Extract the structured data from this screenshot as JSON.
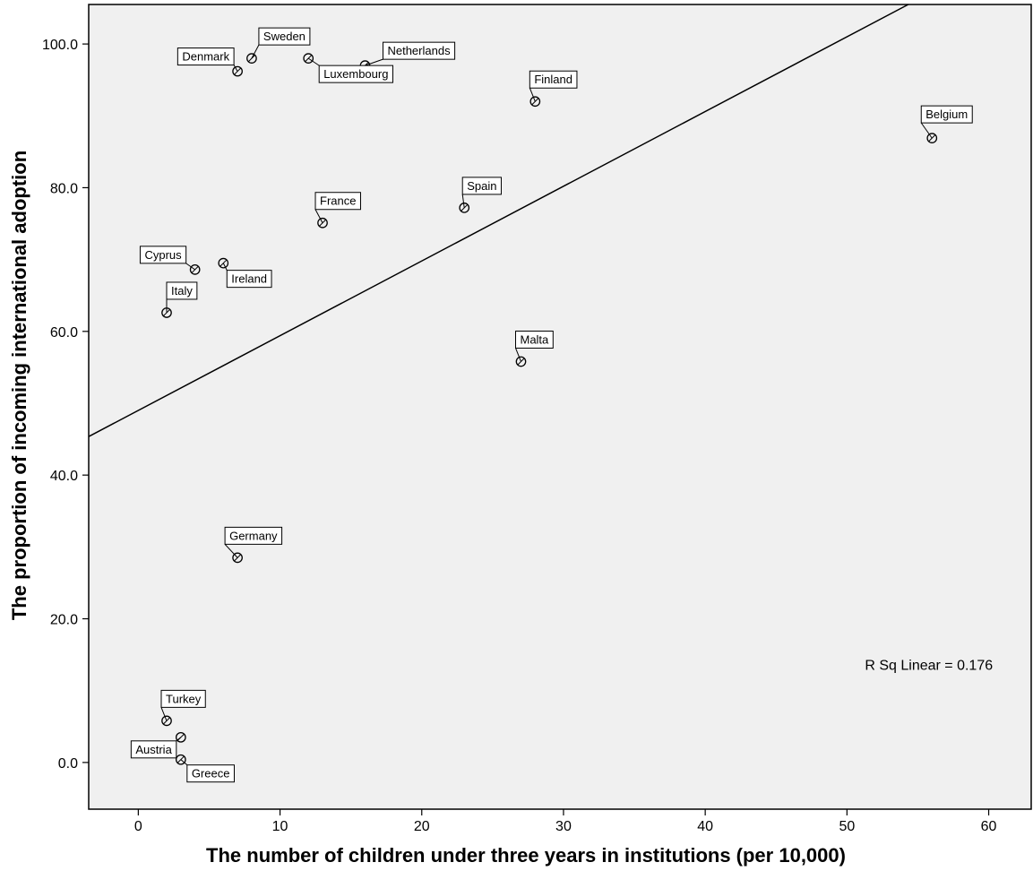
{
  "chart_data": {
    "type": "scatter",
    "xlabel": "The number of children under three years in institutions (per 10,000)",
    "ylabel": "The proportion of incoming international adoption",
    "xlim": [
      -3.5,
      63
    ],
    "ylim": [
      -6.5,
      105.5
    ],
    "x_ticks": [
      0,
      10,
      20,
      30,
      40,
      50,
      60
    ],
    "y_ticks": [
      0.0,
      20.0,
      40.0,
      60.0,
      80.0,
      100.0
    ],
    "x_tick_labels": [
      "0",
      "10",
      "20",
      "30",
      "40",
      "50",
      "60"
    ],
    "y_tick_labels": [
      "0.0",
      "20.0",
      "40.0",
      "60.0",
      "80.0",
      "100.0"
    ],
    "grid": false,
    "plot_background": "#f0f0f0",
    "points": [
      {
        "label": "Sweden",
        "x": 8,
        "y": 98.0
      },
      {
        "label": "Denmark",
        "x": 7,
        "y": 96.2
      },
      {
        "label": "Luxembourg",
        "x": 12,
        "y": 98.0
      },
      {
        "label": "Netherlands",
        "x": 16,
        "y": 97.0
      },
      {
        "label": "Finland",
        "x": 28,
        "y": 92.0
      },
      {
        "label": "Belgium",
        "x": 56,
        "y": 86.9
      },
      {
        "label": "Spain",
        "x": 23,
        "y": 77.2
      },
      {
        "label": "France",
        "x": 13,
        "y": 75.1
      },
      {
        "label": "Cyprus",
        "x": 4,
        "y": 68.6
      },
      {
        "label": "Ireland",
        "x": 6,
        "y": 69.5
      },
      {
        "label": "Italy",
        "x": 2,
        "y": 62.6
      },
      {
        "label": "Malta",
        "x": 27,
        "y": 55.8
      },
      {
        "label": "Germany",
        "x": 7,
        "y": 28.5
      },
      {
        "label": "Turkey",
        "x": 2,
        "y": 5.8
      },
      {
        "label": "Austria",
        "x": 3,
        "y": 3.5
      },
      {
        "label": "Greece",
        "x": 3,
        "y": 0.4
      }
    ],
    "fit_line": {
      "type": "linear",
      "intercept": 49.0,
      "slope": 1.04
    },
    "annotations": [
      {
        "text": "R Sq Linear = 0.176",
        "x": 50,
        "y": 13.5
      }
    ]
  }
}
